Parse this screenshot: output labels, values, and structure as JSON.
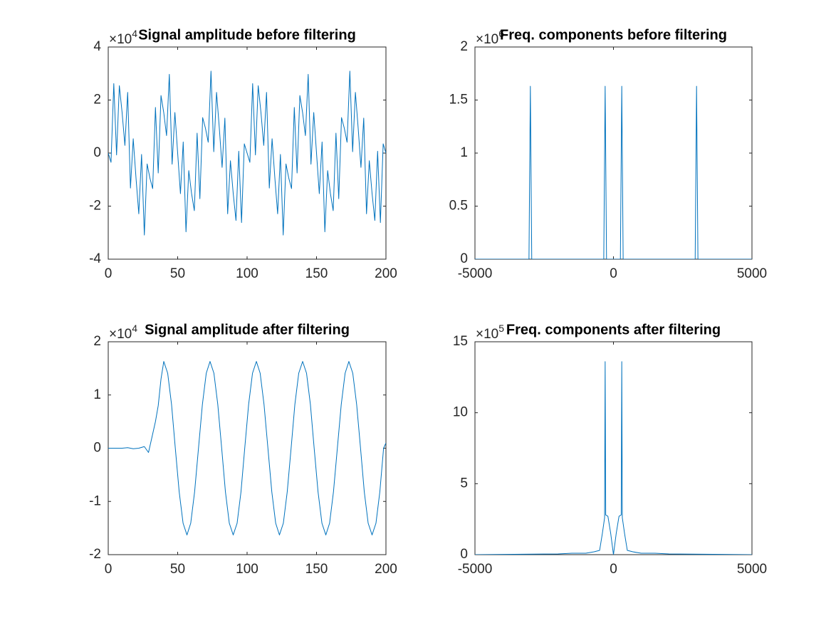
{
  "chart_data": [
    {
      "type": "line",
      "title": "Signal amplitude before filtering",
      "color": "#0072bd",
      "yscale": {
        "base": "×10",
        "power": "4"
      },
      "xlim": [
        0,
        200
      ],
      "xticks": [
        0,
        50,
        100,
        150,
        200
      ],
      "ylim": [
        -4,
        4
      ],
      "yticks": [
        -4,
        -2,
        0,
        2,
        4
      ],
      "x": [
        0,
        2,
        4,
        6,
        8,
        10,
        12,
        14,
        16,
        18,
        20,
        22,
        24,
        26,
        28,
        30,
        32,
        34,
        36,
        38,
        40,
        42,
        44,
        46,
        48,
        50,
        52,
        54,
        56,
        58,
        60,
        62,
        64,
        66,
        68,
        70,
        72,
        74,
        76,
        78,
        80,
        82,
        84,
        86,
        88,
        90,
        92,
        94,
        96,
        98,
        100,
        102,
        104,
        106,
        108,
        110,
        112,
        114,
        116,
        118,
        120,
        122,
        124,
        126,
        128,
        130,
        132,
        134,
        136,
        138,
        140,
        142,
        144,
        146,
        148,
        150,
        152,
        154,
        156,
        158,
        160,
        162,
        164,
        166,
        168,
        170,
        172,
        174,
        176,
        178,
        180,
        182,
        184,
        186,
        188,
        190,
        192,
        194,
        196,
        198,
        200
      ],
      "values": [
        0,
        -0.35,
        2.62,
        -0.07,
        2.54,
        1.52,
        0.29,
        2.29,
        -1.32,
        0.54,
        -0.94,
        -2.29,
        -0.05,
        -3.09,
        -0.41,
        -0.94,
        -1.34,
        1.72,
        -0.75,
        2.17,
        1.52,
        0.66,
        2.97,
        -0.42,
        1.53,
        0,
        -1.53,
        0.42,
        -2.97,
        -0.66,
        -1.52,
        -2.17,
        0.75,
        -1.72,
        1.34,
        0.94,
        0.41,
        3.09,
        0.05,
        2.29,
        0.94,
        -0.54,
        1.32,
        -2.29,
        -0.29,
        -1.52,
        -2.54,
        0.07,
        -2.62,
        0.35,
        0,
        -0.35,
        2.62,
        -0.07,
        2.54,
        1.52,
        0.29,
        2.29,
        -1.32,
        0.54,
        -0.94,
        -2.29,
        -0.05,
        -3.09,
        -0.41,
        -0.94,
        -1.34,
        1.72,
        -0.75,
        2.17,
        1.52,
        0.66,
        2.97,
        -0.42,
        1.53,
        0,
        -1.53,
        0.42,
        -2.97,
        -0.66,
        -1.52,
        -2.17,
        0.75,
        -1.72,
        1.34,
        0.94,
        0.41,
        3.09,
        0.05,
        2.29,
        0.94,
        -0.54,
        1.32,
        -2.29,
        -0.29,
        -1.52,
        -2.54,
        0.07,
        -2.62,
        0.35,
        0
      ]
    },
    {
      "type": "line",
      "title": "Freq. components before filtering",
      "color": "#0072bd",
      "yscale": {
        "base": "×10",
        "power": "6"
      },
      "xlim": [
        -5000,
        5000
      ],
      "xticks": [
        -5000,
        0,
        5000
      ],
      "ylim": [
        0,
        2
      ],
      "yticks": [
        0,
        0.5,
        1,
        1.5,
        2
      ],
      "x": [
        -5000,
        -3050,
        -3000,
        -2950,
        -350,
        -300,
        -250,
        250,
        300,
        350,
        2950,
        3000,
        3050,
        5000
      ],
      "values": [
        0,
        0,
        1.63,
        0,
        0,
        1.63,
        0,
        0,
        1.63,
        0,
        0,
        1.63,
        0,
        0
      ]
    },
    {
      "type": "line",
      "title": "Signal amplitude after filtering",
      "color": "#0072bd",
      "yscale": {
        "base": "×10",
        "power": "4"
      },
      "xlim": [
        0,
        200
      ],
      "xticks": [
        0,
        50,
        100,
        150,
        200
      ],
      "ylim": [
        -2,
        2
      ],
      "yticks": [
        -2,
        -1,
        0,
        1,
        2
      ],
      "x": [
        0,
        10,
        14,
        18,
        22,
        26,
        29,
        31,
        34,
        36,
        38,
        40,
        42.8,
        45.6,
        48.3,
        51.1,
        53.9,
        56.7,
        59.4,
        62.2,
        65,
        67.8,
        70.6,
        73.3,
        76.1,
        78.9,
        81.7,
        84.4,
        87.2,
        90,
        92.8,
        95.6,
        98.3,
        101.1,
        103.9,
        106.7,
        109.4,
        112.2,
        115,
        117.8,
        120.6,
        123.3,
        126.1,
        128.9,
        131.7,
        134.4,
        137.2,
        140,
        142.8,
        145.6,
        148.3,
        151.1,
        153.9,
        156.7,
        159.4,
        162.2,
        165,
        167.8,
        170.6,
        173.3,
        176.1,
        178.9,
        181.7,
        184.4,
        187.2,
        190,
        192.8,
        195.6,
        198.3,
        200
      ],
      "values": [
        0,
        0,
        0.01,
        -0.01,
        0,
        0.03,
        -0.08,
        0.15,
        0.5,
        0.8,
        1.3,
        1.63,
        1.41,
        0.82,
        0,
        -0.82,
        -1.41,
        -1.63,
        -1.41,
        -0.82,
        0,
        0.82,
        1.41,
        1.63,
        1.41,
        0.82,
        0,
        -0.82,
        -1.41,
        -1.63,
        -1.41,
        -0.82,
        0,
        0.82,
        1.41,
        1.63,
        1.41,
        0.82,
        0,
        -0.82,
        -1.41,
        -1.63,
        -1.41,
        -0.82,
        0,
        0.82,
        1.41,
        1.63,
        1.41,
        0.82,
        0,
        -0.82,
        -1.41,
        -1.63,
        -1.41,
        -0.82,
        0,
        0.82,
        1.41,
        1.63,
        1.41,
        0.82,
        0,
        -0.82,
        -1.41,
        -1.63,
        -1.41,
        -0.82,
        0,
        0.1
      ]
    },
    {
      "type": "line",
      "title": "Freq. components after filtering",
      "color": "#0072bd",
      "yscale": {
        "base": "×10",
        "power": "5"
      },
      "xlim": [
        -5000,
        5000
      ],
      "xticks": [
        -5000,
        0,
        5000
      ],
      "ylim": [
        0,
        15
      ],
      "yticks": [
        0,
        5,
        10,
        15
      ],
      "x": [
        -5000,
        -2000,
        -1500,
        -1000,
        -700,
        -500,
        -400,
        -320,
        -300,
        -280,
        -200,
        -100,
        0,
        100,
        200,
        280,
        300,
        320,
        400,
        500,
        700,
        1000,
        1500,
        2000,
        5000
      ],
      "values": [
        0,
        0.05,
        0.1,
        0.1,
        0.2,
        0.3,
        1.5,
        2.6,
        13.6,
        2.8,
        2.7,
        1.5,
        0,
        1.5,
        2.7,
        2.8,
        13.6,
        2.6,
        1.5,
        0.3,
        0.2,
        0.1,
        0.1,
        0.05,
        0
      ]
    }
  ]
}
